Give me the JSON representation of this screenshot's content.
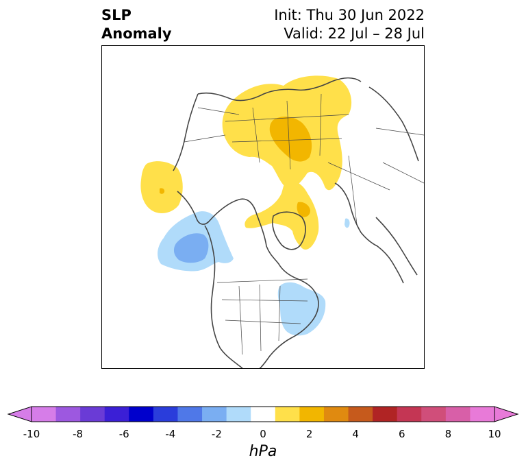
{
  "title": {
    "left_line1": "SLP",
    "left_line2": "Anomaly",
    "right_line1": "Init: Thu 30 Jun 2022",
    "right_line2": "Valid: 22 Jul – 28 Jul"
  },
  "colorbar": {
    "units": "hPa",
    "ticks": [
      "-10",
      "-8",
      "-6",
      "-4",
      "-2",
      "0",
      "2",
      "4",
      "6",
      "8",
      "10"
    ],
    "bins": [
      "#d67de8",
      "#9d58e0",
      "#6a3bd6",
      "#3b1fd6",
      "#0000cc",
      "#2a3ddb",
      "#4f78e8",
      "#7aaef2",
      "#b0dbfa",
      "#ffffff",
      "#ffe04a",
      "#f2b600",
      "#e08a10",
      "#c65a1c",
      "#b02424",
      "#c43654",
      "#d04e7a",
      "#d85fa8",
      "#e87ad8"
    ],
    "low_extend_color": "#d67de8",
    "high_extend_color": "#e87ad8"
  },
  "map": {
    "projection": "polar-stereographic",
    "colors": {
      "pos1": "#ffe04a",
      "pos2": "#f2b600",
      "neg1": "#b0dbfa",
      "neg2": "#7aaef2",
      "coast": "#444444"
    }
  }
}
